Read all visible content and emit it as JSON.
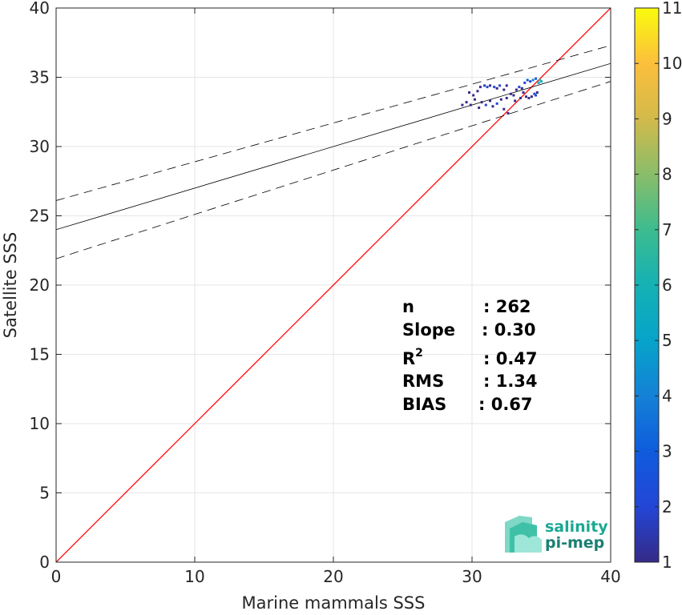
{
  "chart_data": {
    "type": "scatter",
    "subtype": "density-scatter",
    "xlabel": "Marine mammals SSS",
    "ylabel": "Satellite SSS",
    "xlim": [
      0,
      40
    ],
    "ylim": [
      0,
      40
    ],
    "xticks": [
      0,
      10,
      20,
      30,
      40
    ],
    "yticks": [
      0,
      5,
      10,
      15,
      20,
      25,
      30,
      35,
      40
    ],
    "grid": true,
    "colorbar": {
      "range": [
        1,
        11
      ],
      "ticks": [
        1,
        2,
        3,
        4,
        5,
        6,
        7,
        8,
        9,
        10,
        11
      ],
      "colormap": "parula"
    },
    "one_to_one_line": {
      "x": [
        0,
        40
      ],
      "y": [
        0,
        40
      ],
      "color": "#ff0000"
    },
    "regression_line": {
      "intercept": 24.0,
      "slope": 0.3,
      "x": [
        0,
        40
      ],
      "color": "#000000"
    },
    "confidence_bands": [
      {
        "x": [
          0,
          40
        ],
        "y": [
          26.1,
          37.3
        ]
      },
      {
        "x": [
          0,
          40
        ],
        "y": [
          21.9,
          34.7
        ]
      }
    ],
    "points": [
      [
        29.3,
        33.0,
        1
      ],
      [
        29.6,
        33.2,
        1
      ],
      [
        29.9,
        33.0,
        1
      ],
      [
        30.2,
        33.4,
        1
      ],
      [
        30.4,
        34.0,
        1
      ],
      [
        30.6,
        34.3,
        1
      ],
      [
        30.9,
        34.4,
        2
      ],
      [
        31.1,
        34.3,
        2
      ],
      [
        31.3,
        34.4,
        1
      ],
      [
        31.6,
        34.3,
        2
      ],
      [
        31.8,
        34.2,
        1
      ],
      [
        32.0,
        34.4,
        2
      ],
      [
        32.3,
        34.1,
        1
      ],
      [
        32.5,
        34.4,
        1
      ],
      [
        30.7,
        33.2,
        1
      ],
      [
        31.0,
        33.0,
        2
      ],
      [
        31.3,
        33.3,
        1
      ],
      [
        31.5,
        32.9,
        1
      ],
      [
        31.8,
        33.1,
        2
      ],
      [
        32.1,
        33.4,
        1
      ],
      [
        32.3,
        32.7,
        1
      ],
      [
        32.5,
        33.5,
        1
      ],
      [
        32.8,
        33.8,
        1
      ],
      [
        33.0,
        33.7,
        1
      ],
      [
        33.2,
        34.1,
        1
      ],
      [
        33.4,
        34.3,
        2
      ],
      [
        33.6,
        34.2,
        1
      ],
      [
        33.8,
        34.6,
        2
      ],
      [
        34.0,
        34.8,
        3
      ],
      [
        34.2,
        34.7,
        2
      ],
      [
        34.4,
        34.8,
        4
      ],
      [
        34.6,
        34.9,
        3
      ],
      [
        34.8,
        34.6,
        5
      ],
      [
        34.5,
        33.8,
        2
      ],
      [
        34.3,
        33.6,
        1
      ],
      [
        34.6,
        33.7,
        2
      ],
      [
        34.7,
        33.9,
        1
      ],
      [
        34.1,
        33.5,
        1
      ],
      [
        33.9,
        33.6,
        1
      ],
      [
        33.5,
        33.5,
        1
      ],
      [
        30.1,
        33.7,
        1
      ],
      [
        29.8,
        33.9,
        1
      ],
      [
        30.5,
        32.8,
        1
      ],
      [
        32.6,
        32.4,
        1
      ],
      [
        33.1,
        33.3,
        1
      ],
      [
        34.9,
        34.8,
        7
      ],
      [
        35.0,
        34.7,
        6
      ],
      [
        33.7,
        33.9,
        1
      ]
    ],
    "stats": {
      "n": {
        "label": "n",
        "value": ": 262"
      },
      "slope": {
        "label": "Slope",
        "value": ": 0.30"
      },
      "r2": {
        "label": "R",
        "sup": "2",
        "value": ": 0.47"
      },
      "rms": {
        "label": "RMS",
        "value": ": 1.34"
      },
      "bias": {
        "label": "BIAS",
        "value": ": 0.67"
      }
    }
  },
  "logo": {
    "line1": "salinity",
    "line2": "pi-mep",
    "color": "#1aa893"
  }
}
